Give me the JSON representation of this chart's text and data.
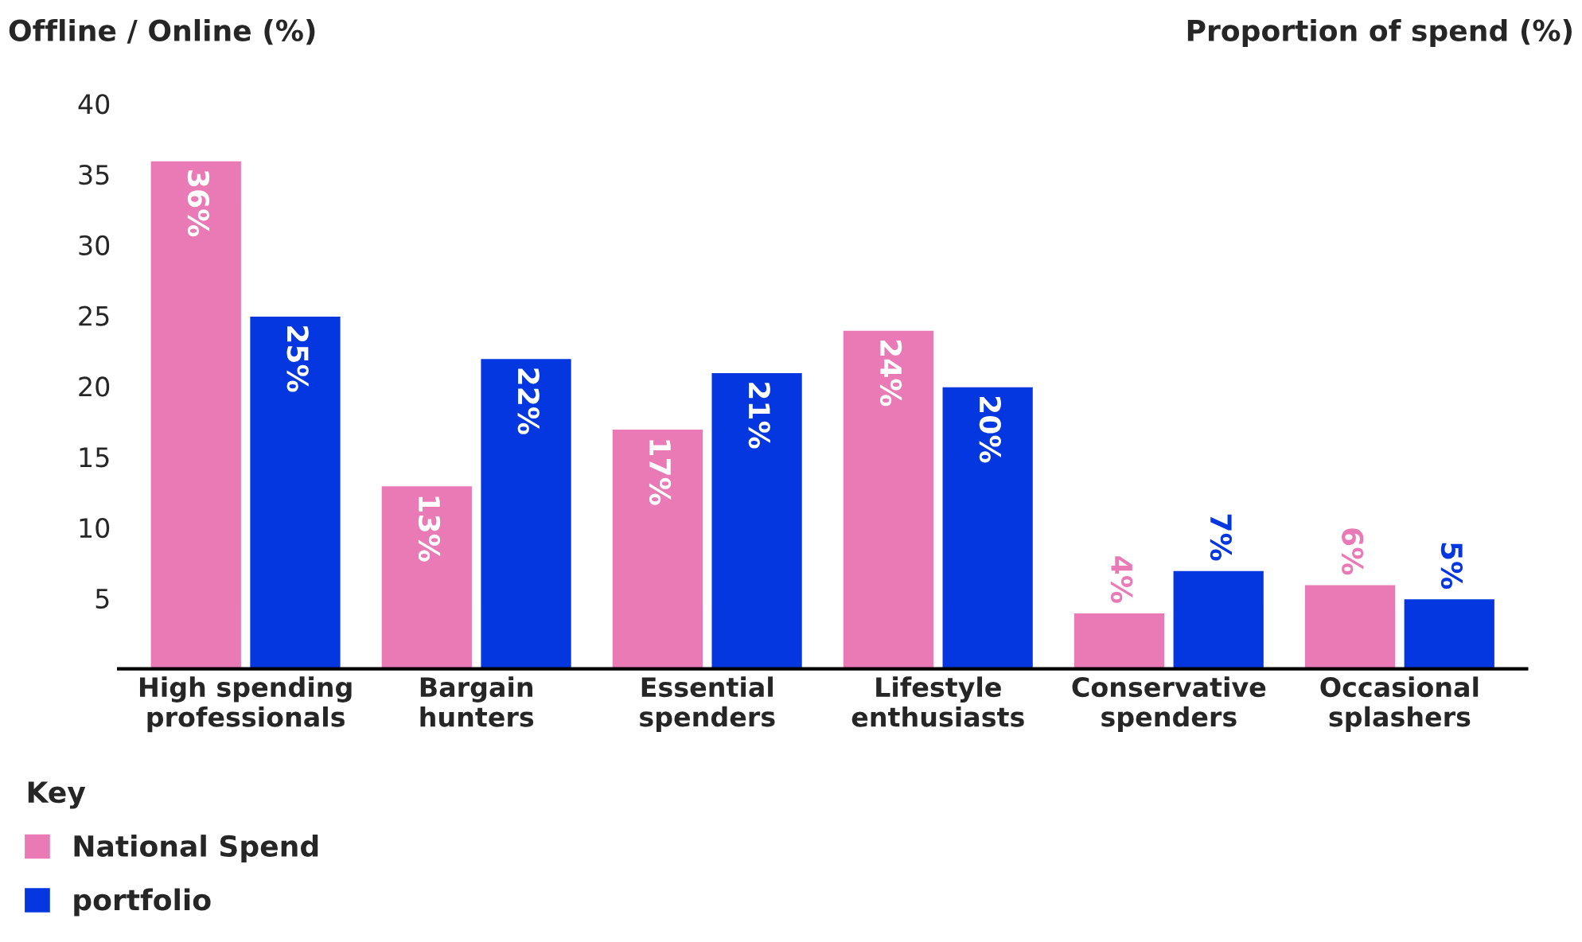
{
  "chart_data": {
    "type": "bar",
    "ylabel": "Offline / Online (%)",
    "annotations": [
      "Proportion of spend (%)"
    ],
    "categories": [
      "High spending\nprofessionals",
      "Bargain\nhunters",
      "Essential\nspenders",
      "Lifestyle\nenthusiasts",
      "Conservative\nspenders",
      "Occasional\nsplashers"
    ],
    "series": [
      {
        "name": "National Spend",
        "color": "#ea7ab5",
        "values": [
          36,
          13,
          17,
          24,
          4,
          6
        ]
      },
      {
        "name": "portfolio",
        "color": "#0437e0",
        "values": [
          25,
          22,
          21,
          20,
          7,
          5
        ]
      }
    ],
    "value_labels": [
      [
        "36%",
        "13%",
        "17%",
        "24%",
        "4%",
        "6%"
      ],
      [
        "25%",
        "22%",
        "21%",
        "20%",
        "7%",
        "5%"
      ]
    ],
    "ylim": [
      0,
      40
    ],
    "yticks": [
      5,
      10,
      15,
      20,
      25,
      30,
      35,
      40
    ],
    "grid": false,
    "legend": "bottom left",
    "legend_title": "Key"
  }
}
